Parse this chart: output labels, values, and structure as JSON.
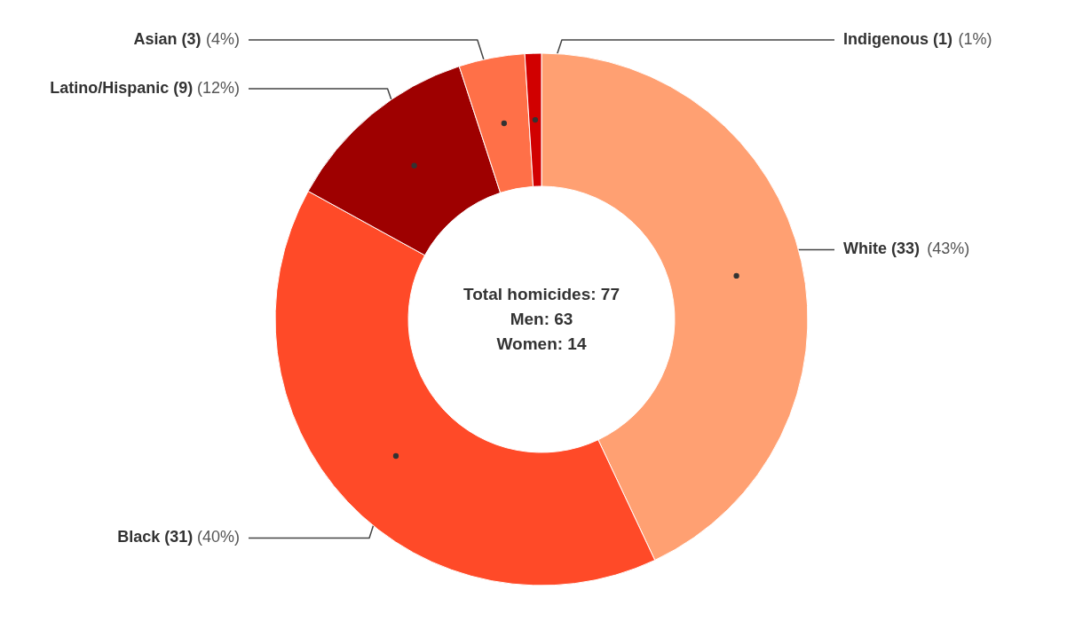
{
  "chart_data": {
    "type": "donut",
    "categories": [
      "White (33)",
      "Black (31)",
      "Latino/Hispanic (9)",
      "Asian (3)",
      "Indigenous (1)"
    ],
    "values": [
      43,
      40,
      12,
      4,
      1
    ],
    "colors": [
      "#ffa072",
      "#ff4a28",
      "#9e0000",
      "#ff7048",
      "#d10000"
    ],
    "value_labels": [
      "(43%)",
      "(40%)",
      "(12%)",
      "(4%)",
      "(1%)"
    ],
    "annotations": [
      "Total homicides: 77",
      "Men: 63",
      "Women: 14"
    ]
  }
}
